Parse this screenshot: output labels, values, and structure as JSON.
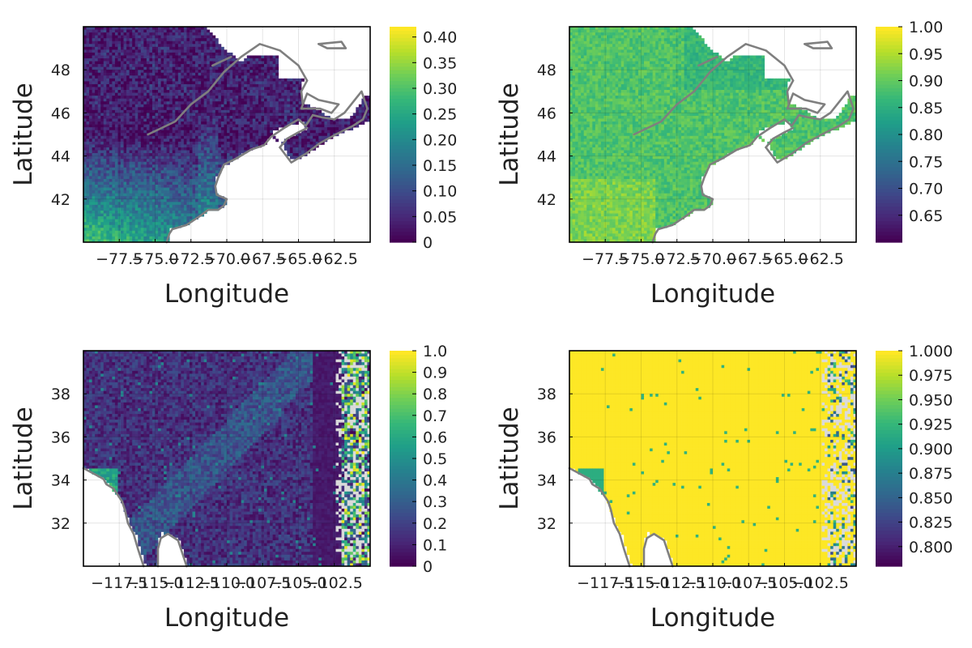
{
  "chart_data": [
    {
      "type": "heatmap",
      "title": "",
      "region": "northeast",
      "xlabel": "Longitude",
      "ylabel": "Latitude",
      "xlim": [
        -80.0,
        -60.0
      ],
      "ylim": [
        40.0,
        50.0
      ],
      "xticks": [
        -77.5,
        -75.0,
        -72.5,
        -70.0,
        -67.5,
        -65.0,
        -62.5
      ],
      "xtick_labels": [
        "−77.5",
        "−75.0",
        "−72.5",
        "−70.0",
        "−67.5",
        "−65.0",
        "−62.5"
      ],
      "yticks": [
        42,
        44,
        46,
        48
      ],
      "ytick_labels": [
        "42",
        "44",
        "46",
        "48"
      ],
      "clim": [
        0,
        0.42
      ],
      "colorbar_ticks": [
        0,
        0.05,
        0.1,
        0.15,
        0.2,
        0.25,
        0.3,
        0.35,
        0.4
      ],
      "colorbar_labels": [
        "0",
        "0.05",
        "0.10",
        "0.15",
        "0.20",
        "0.25",
        "0.30",
        "0.35",
        "0.40"
      ],
      "colormap": "viridis",
      "grid": true,
      "coastline_color": "#7f7f7f"
    },
    {
      "type": "heatmap",
      "title": "",
      "region": "northeast",
      "xlabel": "Longitude",
      "ylabel": "Latitude",
      "xlim": [
        -80.0,
        -60.0
      ],
      "ylim": [
        40.0,
        50.0
      ],
      "xticks": [
        -77.5,
        -75.0,
        -72.5,
        -70.0,
        -67.5,
        -65.0,
        -62.5
      ],
      "xtick_labels": [
        "−77.5",
        "−75.0",
        "−72.5",
        "−70.0",
        "−67.5",
        "−65.0",
        "−62.5"
      ],
      "yticks": [
        42,
        44,
        46,
        48
      ],
      "ytick_labels": [
        "42",
        "44",
        "46",
        "48"
      ],
      "clim": [
        0.6,
        1.0
      ],
      "colorbar_ticks": [
        0.65,
        0.7,
        0.75,
        0.8,
        0.85,
        0.9,
        0.95,
        1.0
      ],
      "colorbar_labels": [
        "0.65",
        "0.70",
        "0.75",
        "0.80",
        "0.85",
        "0.90",
        "0.95",
        "1.00"
      ],
      "colormap": "viridis",
      "grid": true,
      "coastline_color": "#7f7f7f"
    },
    {
      "type": "heatmap",
      "title": "",
      "region": "southwest",
      "xlabel": "Longitude",
      "ylabel": "Latitude",
      "xlim": [
        -120.0,
        -100.0
      ],
      "ylim": [
        30.0,
        40.0
      ],
      "xticks": [
        -117.5,
        -115.0,
        -112.5,
        -110.0,
        -107.5,
        -105.0,
        -102.5
      ],
      "xtick_labels": [
        "−117.5",
        "−115.0",
        "−112.5",
        "−110.0",
        "−107.5",
        "−105.0",
        "−102.5"
      ],
      "yticks": [
        32,
        34,
        36,
        38
      ],
      "ytick_labels": [
        "32",
        "34",
        "36",
        "38"
      ],
      "clim": [
        0,
        1.0
      ],
      "colorbar_ticks": [
        0,
        0.1,
        0.2,
        0.3,
        0.4,
        0.5,
        0.6,
        0.7,
        0.8,
        0.9,
        1.0
      ],
      "colorbar_labels": [
        "0",
        "0.1",
        "0.2",
        "0.3",
        "0.4",
        "0.5",
        "0.6",
        "0.7",
        "0.8",
        "0.9",
        "1.0"
      ],
      "colormap": "viridis",
      "grid": true,
      "coastline_color": "#7f7f7f"
    },
    {
      "type": "heatmap",
      "title": "",
      "region": "southwest",
      "xlabel": "Longitude",
      "ylabel": "Latitude",
      "xlim": [
        -120.0,
        -100.0
      ],
      "ylim": [
        30.0,
        40.0
      ],
      "xticks": [
        -117.5,
        -115.0,
        -112.5,
        -110.0,
        -107.5,
        -105.0,
        -102.5
      ],
      "xtick_labels": [
        "−117.5",
        "−115.0",
        "−112.5",
        "−110.0",
        "−107.5",
        "−105.0",
        "−102.5"
      ],
      "yticks": [
        32,
        34,
        36,
        38
      ],
      "ytick_labels": [
        "32",
        "34",
        "36",
        "38"
      ],
      "clim": [
        0.78,
        1.0
      ],
      "colorbar_ticks": [
        0.8,
        0.825,
        0.85,
        0.875,
        0.9,
        0.925,
        0.95,
        0.975,
        1.0
      ],
      "colorbar_labels": [
        "0.800",
        "0.825",
        "0.850",
        "0.875",
        "0.900",
        "0.925",
        "0.950",
        "0.975",
        "1.000"
      ],
      "colormap": "viridis",
      "grid": true,
      "coastline_color": "#7f7f7f"
    }
  ]
}
